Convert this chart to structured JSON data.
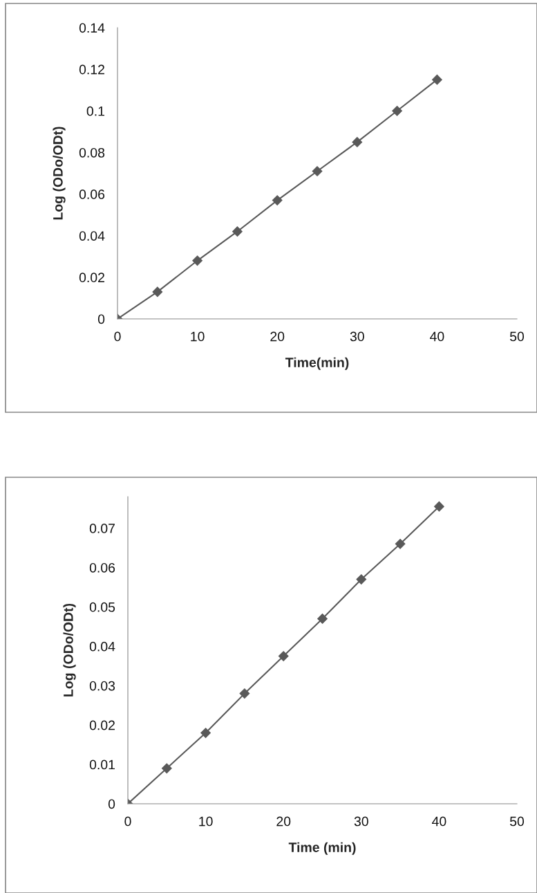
{
  "chart_data": [
    {
      "type": "line",
      "xlabel": "Time(min)",
      "ylabel": "Log (ODo/ODt)",
      "x": [
        0,
        5,
        10,
        15,
        20,
        25,
        30,
        35,
        40
      ],
      "series": [
        {
          "color": "#595959",
          "values": [
            0,
            0.013,
            0.028,
            0.042,
            0.057,
            0.071,
            0.085,
            0.1,
            0.115
          ]
        }
      ],
      "xlim": [
        0,
        50
      ],
      "xticks": [
        0,
        10,
        20,
        30,
        40,
        50
      ],
      "ylim": [
        0,
        0.14
      ],
      "yticks": [
        0,
        0.02,
        0.04,
        0.06,
        0.08,
        0.1,
        0.12,
        0.14
      ],
      "marker": "diamond",
      "grid": false,
      "legend": false
    },
    {
      "type": "line",
      "xlabel": "Time (min)",
      "ylabel": "Log (ODo/ODt)",
      "x": [
        0,
        5,
        10,
        15,
        20,
        25,
        30,
        35,
        40
      ],
      "series": [
        {
          "color": "#595959",
          "values": [
            0,
            0.009,
            0.018,
            0.028,
            0.0375,
            0.047,
            0.057,
            0.066,
            0.0755
          ]
        }
      ],
      "xlim": [
        0,
        50
      ],
      "xticks": [
        0,
        10,
        20,
        30,
        40,
        50
      ],
      "ylim": [
        0,
        0.078
      ],
      "yticks": [
        0,
        0.01,
        0.02,
        0.03,
        0.04,
        0.05,
        0.06,
        0.07
      ],
      "marker": "diamond",
      "grid": false,
      "legend": false
    }
  ]
}
